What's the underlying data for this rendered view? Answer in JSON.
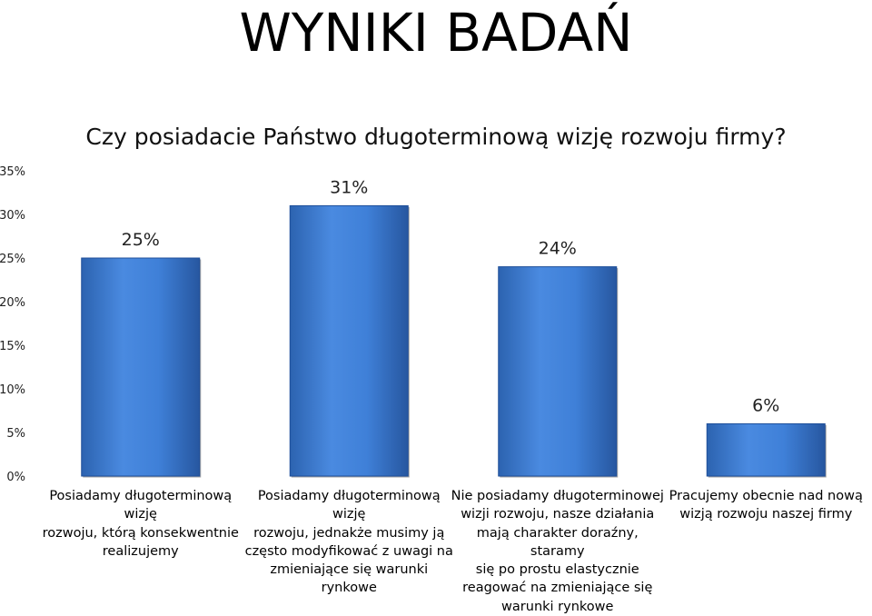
{
  "slide": {
    "title": "WYNIKI BADAŃ"
  },
  "chart_data": {
    "type": "bar",
    "title": "Czy posiadacie Państwo długoterminową wizję rozwoju firmy?",
    "categories": [
      "Posiadamy długoterminową wizję rozwoju, którą konsekwentnie realizujemy",
      "Posiadamy długoterminową wizję rozwoju, jednakże musimy ją często modyfikować z uwagi na zmieniające się warunki rynkowe",
      "Nie posiadamy długoterminowej wizji rozwoju, nasze działania mają charakter doraźny, staramy się po prostu elastycznie reagować na zmieniające się warunki rynkowe",
      "Pracujemy obecnie nad nową wizją rozwoju naszej firmy"
    ],
    "category_lines": [
      [
        "Posiadamy długoterminową wizję",
        "rozwoju, którą konsekwentnie",
        "realizujemy"
      ],
      [
        "Posiadamy długoterminową wizję",
        "rozwoju, jednakże musimy ją",
        "często modyfikować z uwagi na",
        "zmieniające się warunki rynkowe"
      ],
      [
        "Nie posiadamy długoterminowej",
        "wizji rozwoju, nasze działania",
        "mają charakter doraźny, staramy",
        "się po prostu elastycznie",
        "reagować na zmieniające się",
        "warunki rynkowe"
      ],
      [
        "Pracujemy obecnie nad nową",
        "wizją rozwoju naszej firmy"
      ]
    ],
    "values": [
      25,
      31,
      24,
      6
    ],
    "data_labels": [
      "25%",
      "31%",
      "24%",
      "6%"
    ],
    "ylim": [
      0,
      35
    ],
    "yticks": [
      0,
      5,
      10,
      15,
      20,
      25,
      30,
      35
    ],
    "ytick_labels": [
      "0%",
      "5%",
      "10%",
      "15%",
      "20%",
      "25%",
      "30%",
      "35%"
    ],
    "xlabel": "",
    "ylabel": "",
    "grid": false,
    "legend": "none",
    "bar_color": "#3a7bd5",
    "bar_color_dark": "#1f4f99"
  }
}
